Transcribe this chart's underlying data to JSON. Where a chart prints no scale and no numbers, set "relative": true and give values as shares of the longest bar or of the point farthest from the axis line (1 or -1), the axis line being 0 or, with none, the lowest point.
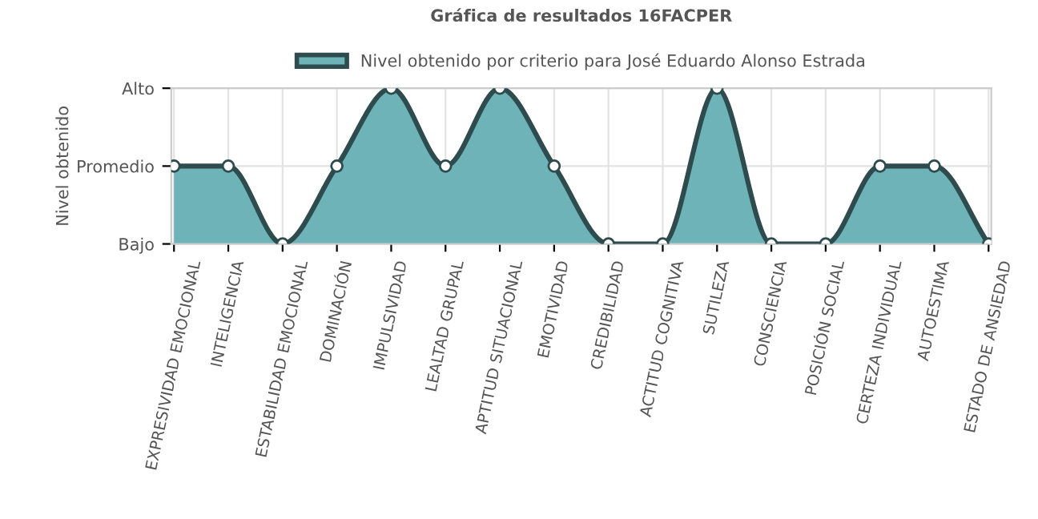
{
  "chart_data": {
    "type": "area",
    "title": "Gráfica de resultados 16FACPER",
    "ylabel": "Nivel obtenido",
    "categories": [
      "EXPRESIVIDAD EMOCIONAL",
      "INTELIGENCIA",
      "ESTABILIDAD EMOCIONAL",
      "DOMINACIÓN",
      "IMPULSIVIDAD",
      "LEALTAD GRUPAL",
      "APTITUD SITUACIONAL",
      "EMOTIVIDAD",
      "CREDIBILIDAD",
      "ACTITUD COGNITIVA",
      "SUTILEZA",
      "CONSCIENCIA",
      "POSICIÓN SOCIAL",
      "CERTEZA INDIVIDUAL",
      "AUTOESTIMA",
      "ESTADO DE ANSIEDAD"
    ],
    "y_categories": [
      "Alto",
      "Promedio",
      "Bajo"
    ],
    "relative": true,
    "series": [
      {
        "name": "Nivel obtenido por criterio para José Eduardo Alonso Estrada",
        "color": "#6db3b7",
        "values": [
          0.5,
          0.5,
          0,
          0.5,
          1,
          0.5,
          1,
          0.5,
          0,
          0,
          1,
          0,
          0,
          0.5,
          0.5,
          0
        ]
      }
    ],
    "grid": true,
    "legend": "top",
    "marker": "circle",
    "line_style": "solid"
  }
}
